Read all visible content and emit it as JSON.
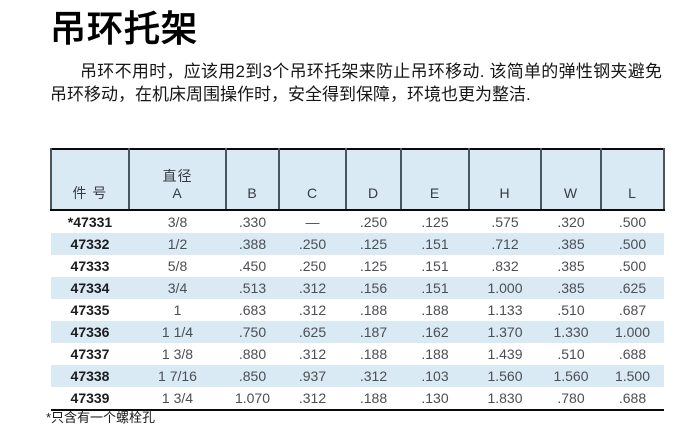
{
  "page": {
    "title": "吊环托架",
    "intro": "吊环不用时，应该用2到3个吊环托架来防止吊环移动. 该简单的弹性钢夹避免吊环移动，在机床周围操作时，安全得到保障，环境也更为整洁.",
    "footnote": "*只含有一个螺栓孔"
  },
  "colors": {
    "stripe_blue": "#daeaf5",
    "header_separator": "#49565e",
    "rule_black": "#0a0a0a",
    "body_text": "#4b4e52",
    "part_number_text": "#1c1c1e"
  },
  "table": {
    "headers": [
      "件 号",
      "直径\nA",
      "B",
      "C",
      "D",
      "E",
      "H",
      "W",
      "L"
    ],
    "rows": [
      [
        "*47331",
        "3/8",
        ".330",
        "—",
        ".250",
        ".125",
        ".575",
        ".320",
        ".500"
      ],
      [
        "47332",
        "1/2",
        ".388",
        ".250",
        ".125",
        ".151",
        ".712",
        ".385",
        ".500"
      ],
      [
        "47333",
        "5/8",
        ".450",
        ".250",
        ".125",
        ".151",
        ".832",
        ".385",
        ".500"
      ],
      [
        "47334",
        "3/4",
        ".513",
        ".312",
        ".156",
        ".151",
        "1.000",
        ".385",
        ".625"
      ],
      [
        "47335",
        "1",
        ".683",
        ".312",
        ".188",
        ".188",
        "1.133",
        ".510",
        ".687"
      ],
      [
        "47336",
        "1 1/4",
        ".750",
        ".625",
        ".187",
        ".162",
        "1.370",
        "1.330",
        "1.000"
      ],
      [
        "47337",
        "1 3/8",
        ".880",
        ".312",
        ".188",
        ".188",
        "1.439",
        ".510",
        ".688"
      ],
      [
        "47338",
        "1 7/16",
        ".850",
        ".937",
        ".312",
        ".103",
        "1.560",
        "1.560",
        "1.500"
      ],
      [
        "47339",
        "1 3/4",
        "1.070",
        ".312",
        ".188",
        ".130",
        "1.830",
        ".780",
        ".688"
      ]
    ]
  }
}
